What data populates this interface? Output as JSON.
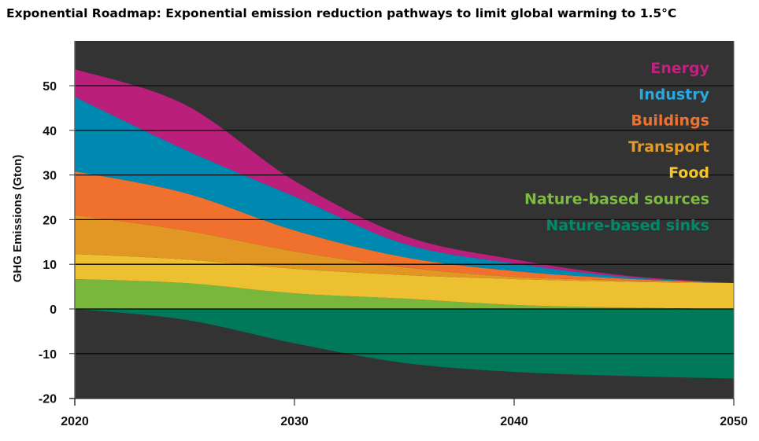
{
  "chart_data": {
    "type": "area",
    "stacked": true,
    "title": "Exponential Roadmap: Exponential emission reduction pathways to limit global warming to 1.5°C",
    "xlabel": "",
    "ylabel": "GHG Emissions (Gton)",
    "xlim": [
      2020,
      2050
    ],
    "ylim": [
      -20,
      60
    ],
    "x_ticks": [
      "2020",
      "2030",
      "2040",
      "2050"
    ],
    "y_ticks": [
      "50",
      "40",
      "30",
      "20",
      "10",
      "0",
      "-10",
      "-20"
    ],
    "y_tick_values": [
      50,
      40,
      30,
      20,
      10,
      0,
      -10,
      -20
    ],
    "grid": true,
    "legend_position": "top-right",
    "x": [
      2020,
      2025,
      2030,
      2035,
      2040,
      2045,
      2050
    ],
    "series": [
      {
        "name": "Nature-based sinks",
        "color": "#00785a",
        "label_color": "#008a6a",
        "values": [
          0,
          -2.4,
          -7.7,
          -12.1,
          -14.1,
          -15.0,
          -15.6
        ]
      },
      {
        "name": "Nature-based sources",
        "color": "#79b63c",
        "label_color": "#7cbc3e",
        "values": [
          6.7,
          5.8,
          3.5,
          2.3,
          0.9,
          0.3,
          0
        ]
      },
      {
        "name": "Food",
        "color": "#ecc030",
        "label_color": "#f2c72e",
        "values": [
          5.6,
          5.3,
          5.5,
          5.3,
          5.8,
          5.8,
          5.8
        ]
      },
      {
        "name": "Transport",
        "color": "#e29624",
        "label_color": "#e49a26",
        "values": [
          8.7,
          6.5,
          3.9,
          1.7,
          0.5,
          0.3,
          0
        ]
      },
      {
        "name": "Buildings",
        "color": "#f0712e",
        "label_color": "#f0712e",
        "values": [
          9.8,
          8.4,
          4.7,
          2.3,
          1.3,
          0.4,
          0
        ]
      },
      {
        "name": "Industry",
        "color": "#0089b0",
        "label_color": "#28a8df",
        "values": [
          16.7,
          9.7,
          7.6,
          3.0,
          1.7,
          0.4,
          0
        ]
      },
      {
        "name": "Energy",
        "color": "#bb1f7c",
        "label_color": "#c0227f",
        "values": [
          6.2,
          10.1,
          3.5,
          1.8,
          0.9,
          0.3,
          0
        ]
      }
    ],
    "legend_order": [
      "Energy",
      "Industry",
      "Buildings",
      "Transport",
      "Food",
      "Nature-based sources",
      "Nature-based sinks"
    ]
  }
}
